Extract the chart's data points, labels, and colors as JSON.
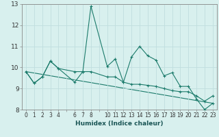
{
  "xlabel": "Humidex (Indice chaleur)",
  "background_color": "#d8f0ee",
  "grid_color": "#c0dede",
  "line_color": "#1a7a6a",
  "xlim": [
    -0.5,
    23.5
  ],
  "ylim": [
    8,
    13
  ],
  "yticks": [
    8,
    9,
    10,
    11,
    12,
    13
  ],
  "line1_x": [
    0,
    1,
    2,
    3,
    4,
    6,
    7,
    8,
    10,
    11,
    12,
    13,
    14,
    15,
    16,
    17,
    18,
    19,
    20,
    21,
    22,
    23
  ],
  "line1_y": [
    9.8,
    9.25,
    9.55,
    10.3,
    9.95,
    9.8,
    9.8,
    12.9,
    10.05,
    10.4,
    9.3,
    10.5,
    11.0,
    10.55,
    10.35,
    9.6,
    9.75,
    9.1,
    9.1,
    8.5,
    8.0,
    8.3
  ],
  "line2_x": [
    0,
    1,
    2,
    3,
    4,
    6,
    7,
    8,
    10,
    11,
    12,
    13,
    14,
    15,
    16,
    17,
    18,
    19,
    20,
    21,
    22,
    23
  ],
  "line2_y": [
    9.8,
    9.25,
    9.55,
    10.3,
    9.95,
    9.3,
    9.8,
    9.8,
    9.55,
    9.55,
    9.3,
    9.2,
    9.2,
    9.15,
    9.1,
    9.0,
    8.9,
    8.85,
    8.85,
    8.65,
    8.4,
    8.65
  ],
  "line3_x": [
    0,
    23
  ],
  "line3_y": [
    9.8,
    8.3
  ]
}
